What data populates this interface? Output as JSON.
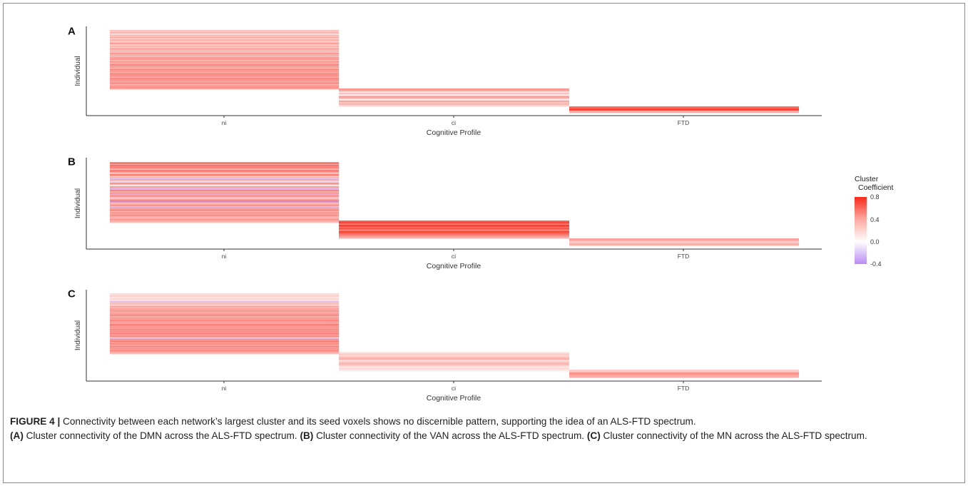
{
  "chart_data": [
    {
      "type": "heatmap",
      "panel_label": "A",
      "xlabel": "Cognitive Profile",
      "ylabel": "Individual",
      "categories": [
        "ni",
        "ci",
        "FTD"
      ],
      "counts": [
        60,
        12,
        3
      ],
      "values": {
        "ni": [
          0.25,
          0.18,
          0.3,
          0.22,
          0.12,
          0.28,
          0.2,
          0.35,
          0.15,
          0.26,
          0.3,
          0.18,
          0.22,
          0.4,
          0.25,
          0.16,
          0.32,
          0.2,
          0.28,
          0.36,
          0.22,
          0.3,
          0.18,
          0.42,
          0.26,
          0.34,
          0.2,
          0.38,
          0.3,
          0.45,
          0.24,
          0.33,
          0.4,
          0.28,
          0.36,
          0.5,
          0.3,
          0.42,
          0.26,
          0.38,
          0.46,
          0.32,
          0.4,
          0.28,
          0.5,
          0.36,
          0.44,
          0.3,
          0.38,
          0.48,
          0.34,
          0.42,
          0.3,
          0.46,
          0.38,
          0.28,
          0.4,
          0.35,
          0.45,
          0.3
        ],
        "ci": [
          0.4,
          0.32,
          0.1,
          0.25,
          0.05,
          0.38,
          0.3,
          0.02,
          0.35,
          0.2,
          0.28,
          0.15
        ],
        "FTD": [
          0.55,
          0.7,
          0.3
        ]
      },
      "legend_title": "Cluster\nCoefficient",
      "color_scale": {
        "min": -0.4,
        "mid": 0.0,
        "max": 0.8,
        "low_color": "#b98bf3",
        "mid_color": "#ffffff",
        "high_color": "#f8291b"
      },
      "colorbar_ticks": [
        0.8,
        0.4,
        0.0,
        -0.4
      ]
    },
    {
      "type": "heatmap",
      "panel_label": "B",
      "xlabel": "Cognitive Profile",
      "ylabel": "Individual",
      "categories": [
        "ni",
        "ci",
        "FTD"
      ],
      "counts": [
        60,
        12,
        3
      ],
      "values": {
        "ni": [
          0.45,
          0.55,
          0.3,
          0.6,
          0.4,
          0.5,
          0.35,
          0.25,
          0.55,
          0.45,
          0.3,
          0.2,
          0.5,
          0.4,
          0.15,
          0.3,
          -0.2,
          0.35,
          0.25,
          -0.1,
          0.3,
          0.45,
          0.2,
          0.05,
          0.4,
          0.3,
          -0.25,
          0.35,
          0.5,
          0.25,
          0.4,
          -0.3,
          0.3,
          0.45,
          0.35,
          -0.15,
          0.25,
          0.4,
          0.5,
          -0.35,
          0.3,
          0.2,
          0.45,
          0.35,
          -0.2,
          0.4,
          0.3,
          0.5,
          0.25,
          0.35,
          0.4,
          0.3,
          0.45,
          0.35,
          0.3,
          0.25,
          0.4,
          0.35,
          0.3,
          0.25
        ],
        "ci": [
          0.6,
          0.7,
          0.5,
          0.75,
          0.55,
          0.65,
          0.45,
          0.7,
          0.6,
          0.5,
          0.4,
          0.3
        ],
        "FTD": [
          0.35,
          0.2,
          0.3
        ]
      },
      "legend_title": "Cluster\nCoefficient",
      "color_scale": {
        "min": -0.4,
        "mid": 0.0,
        "max": 0.8,
        "low_color": "#b98bf3",
        "mid_color": "#ffffff",
        "high_color": "#f8291b"
      },
      "colorbar_ticks": [
        0.8,
        0.4,
        0.0,
        -0.4
      ]
    },
    {
      "type": "heatmap",
      "panel_label": "C",
      "xlabel": "Cognitive Profile",
      "ylabel": "Individual",
      "categories": [
        "ni",
        "ci",
        "FTD"
      ],
      "counts": [
        60,
        12,
        3
      ],
      "values": {
        "ni": [
          0.15,
          0.1,
          0.2,
          0.12,
          0.08,
          0.18,
          0.1,
          0.14,
          -0.25,
          0.2,
          0.3,
          0.12,
          0.25,
          0.35,
          0.2,
          0.4,
          0.3,
          0.45,
          0.25,
          0.38,
          0.3,
          0.5,
          0.35,
          0.28,
          0.42,
          0.3,
          0.48,
          0.36,
          0.4,
          0.3,
          0.45,
          0.5,
          0.35,
          0.42,
          0.3,
          0.48,
          0.38,
          0.44,
          0.32,
          0.5,
          0.4,
          0.35,
          0.46,
          0.3,
          -0.2,
          0.42,
          0.38,
          0.5,
          0.34,
          0.44,
          0.4,
          0.3,
          0.48,
          0.36,
          0.42,
          0.32,
          0.46,
          0.38,
          0.3,
          0.25
        ],
        "ci": [
          0.1,
          0.2,
          0.15,
          0.25,
          0.3,
          0.12,
          0.22,
          0.28,
          0.18,
          0.1,
          0.15,
          0.08
        ],
        "FTD": [
          0.2,
          0.4,
          0.3
        ]
      },
      "legend_title": "Cluster\nCoefficient",
      "color_scale": {
        "min": -0.4,
        "mid": 0.0,
        "max": 0.8,
        "low_color": "#b98bf3",
        "mid_color": "#ffffff",
        "high_color": "#f8291b"
      },
      "colorbar_ticks": [
        0.8,
        0.4,
        0.0,
        -0.4
      ]
    }
  ],
  "legend": {
    "title_line1": "Cluster",
    "title_line2": "Coefficient",
    "tick_labels": [
      "0.8",
      "0.4",
      "0.0",
      "-0.4"
    ]
  },
  "caption": {
    "figure_label": "FIGURE 4 |",
    "main": " Connectivity between each network’s largest cluster and its seed voxels shows no discernible pattern, supporting the idea of an ALS-FTD spectrum.",
    "a_label": "(A)",
    "a_text": " Cluster connectivity of the DMN across the ALS-FTD spectrum.",
    "b_label": "(B)",
    "b_text": " Cluster connectivity of the VAN across the ALS-FTD spectrum.",
    "c_label": "(C)",
    "c_text": " Cluster connectivity of the MN across the ALS-FTD spectrum."
  }
}
